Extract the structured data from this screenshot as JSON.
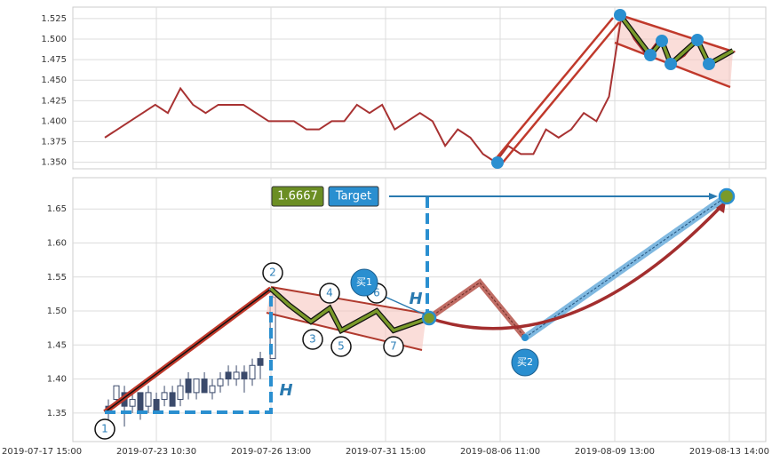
{
  "chart_data": [
    {
      "type": "line",
      "color": "#a83232",
      "x": [
        0.55,
        0.66,
        0.77,
        0.88,
        0.99,
        1.1,
        1.21,
        1.32,
        1.43,
        1.54,
        1.65,
        1.76,
        1.87,
        1.98,
        2.09,
        2.2,
        2.31,
        2.42,
        2.53,
        2.64,
        2.75,
        2.86,
        2.97,
        3.08,
        3.19,
        3.3,
        3.41,
        3.52,
        3.63,
        3.74,
        3.85,
        3.96,
        4.07,
        4.18,
        4.29,
        4.4,
        4.51,
        4.62,
        4.73,
        4.84,
        4.95,
        5.06,
        5.17,
        5.28,
        5.39,
        5.5,
        5.61,
        5.72,
        5.83,
        5.94,
        6.05
      ],
      "values": [
        1.38,
        1.39,
        1.4,
        1.41,
        1.42,
        1.41,
        1.44,
        1.42,
        1.41,
        1.42,
        1.42,
        1.42,
        1.41,
        1.4,
        1.4,
        1.4,
        1.39,
        1.39,
        1.4,
        1.4,
        1.42,
        1.41,
        1.42,
        1.39,
        1.4,
        1.41,
        1.4,
        1.37,
        1.39,
        1.38,
        1.36,
        1.35,
        1.37,
        1.36,
        1.36,
        1.39,
        1.38,
        1.39,
        1.41,
        1.4,
        1.43,
        1.53,
        1.5,
        1.48,
        1.5,
        1.47,
        1.48,
        1.5,
        1.47,
        1.48,
        1.485
      ],
      "xlim": [
        0.271,
        6.318
      ],
      "ylim": [
        1.342,
        1.539
      ],
      "yticks": [
        {
          "value": 1.35,
          "label": "1.350"
        },
        1.375,
        {
          "value": 1.4,
          "label": "1.400"
        },
        1.425,
        {
          "value": 1.45,
          "label": "1.450"
        },
        1.475,
        {
          "value": 1.5,
          "label": "1.500"
        },
        1.525
      ],
      "grid": true
    },
    {
      "type": "candlestick",
      "up_color": "#ffffff",
      "down_color": "#3b4a6b",
      "edge_color": "#3b4a6b",
      "x": [
        0.581,
        0.651,
        0.721,
        0.791,
        0.86,
        0.93,
        1.0,
        1.07,
        1.14,
        1.209,
        1.279,
        1.349,
        1.419,
        1.488,
        1.558,
        1.628,
        1.698,
        1.767,
        1.837,
        1.907,
        2.016
      ],
      "open": [
        1.36,
        1.37,
        1.38,
        1.36,
        1.38,
        1.36,
        1.37,
        1.37,
        1.38,
        1.37,
        1.4,
        1.38,
        1.4,
        1.38,
        1.39,
        1.41,
        1.4,
        1.41,
        1.4,
        1.43,
        1.43
      ],
      "close": [
        1.35,
        1.39,
        1.36,
        1.37,
        1.35,
        1.38,
        1.35,
        1.38,
        1.36,
        1.39,
        1.38,
        1.4,
        1.38,
        1.39,
        1.4,
        1.4,
        1.41,
        1.4,
        1.42,
        1.42,
        1.52
      ],
      "high": [
        1.37,
        1.39,
        1.39,
        1.38,
        1.38,
        1.39,
        1.38,
        1.39,
        1.39,
        1.4,
        1.41,
        1.4,
        1.41,
        1.4,
        1.41,
        1.42,
        1.42,
        1.42,
        1.43,
        1.44,
        1.53
      ],
      "low": [
        1.34,
        1.36,
        1.33,
        1.35,
        1.34,
        1.35,
        1.35,
        1.36,
        1.36,
        1.36,
        1.37,
        1.37,
        1.38,
        1.37,
        1.38,
        1.39,
        1.39,
        1.38,
        1.39,
        1.4,
        1.43
      ],
      "xlim": [
        0.271,
        6.318
      ],
      "ylim": [
        1.308,
        1.696
      ],
      "yticks": [
        1.35,
        {
          "value": 1.4,
          "label": "1.40"
        },
        1.45,
        {
          "value": 1.5,
          "label": "1.50"
        },
        1.55,
        {
          "value": 1.6,
          "label": "1.60"
        },
        1.65
      ],
      "xticks": [
        {
          "value": 0,
          "label": "2019-07-17 15:00"
        },
        {
          "value": 1,
          "label": "2019-07-23 10:30"
        },
        {
          "value": 2,
          "label": "2019-07-26 13:00"
        },
        {
          "value": 3,
          "label": "2019-07-31 15:00"
        },
        {
          "value": 4,
          "label": "2019-08-06 11:00"
        },
        {
          "value": 5,
          "label": "2019-08-09 13:00"
        },
        {
          "value": 6,
          "label": "2019-08-13 14:00"
        }
      ],
      "grid": true
    }
  ],
  "annotations": {
    "price": "1.6667",
    "target": "Target",
    "height": "H",
    "buy1": "买1",
    "buy2": "买2",
    "points": [
      "1",
      "2",
      "3",
      "4",
      "5",
      "6",
      "7"
    ]
  }
}
